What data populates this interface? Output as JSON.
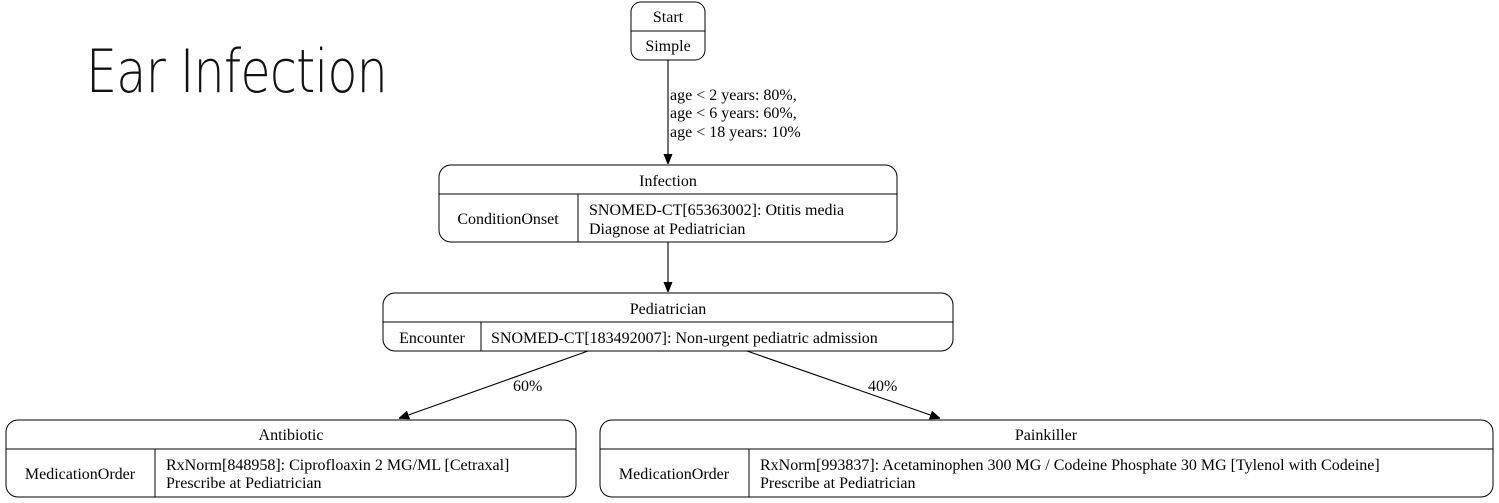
{
  "title": "Ear Infection",
  "nodes": {
    "start": {
      "name": "Start",
      "type": "Simple"
    },
    "infection": {
      "name": "Infection",
      "type": "ConditionOnset",
      "detail_lines": [
        "SNOMED-CT[65363002]: Otitis media",
        "Diagnose at Pediatrician"
      ]
    },
    "pediatrician": {
      "name": "Pediatrician",
      "type": "Encounter",
      "detail_lines": [
        "SNOMED-CT[183492007]: Non-urgent pediatric admission"
      ]
    },
    "antibiotic": {
      "name": "Antibiotic",
      "type": "MedicationOrder",
      "detail_lines": [
        "RxNorm[848958]: Ciprofloaxin 2 MG/ML [Cetraxal]",
        "Prescribe at Pediatrician"
      ]
    },
    "painkiller": {
      "name": "Painkiller",
      "type": "MedicationOrder",
      "detail_lines": [
        "RxNorm[993837]: Acetaminophen 300 MG / Codeine Phosphate 30 MG [Tylenol with Codeine]",
        "Prescribe at Pediatrician"
      ]
    }
  },
  "edges": {
    "start_to_infection": [
      "age < 2 years: 80%,",
      "age < 6 years: 60%,",
      "age < 18 years: 10%"
    ],
    "pediatrician_to_antibiotic": "60%",
    "pediatrician_to_painkiller": "40%"
  }
}
